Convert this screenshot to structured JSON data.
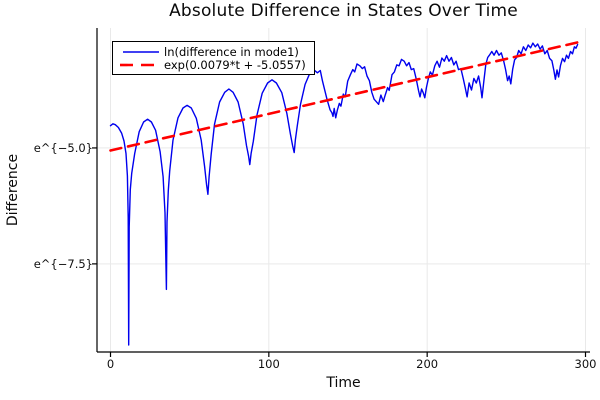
{
  "chart_data": {
    "type": "line",
    "title": "Absolute Difference in States Over Time",
    "xlabel": "Time",
    "ylabel": "Difference",
    "yscale": "log-e",
    "grid": true,
    "legend_position": "top-left",
    "xlim": [
      -8.53,
      302.84
    ],
    "ylim_ln": [
      -9.4,
      -2.414
    ],
    "x_ticks": [
      0,
      100,
      200,
      300
    ],
    "y_ticks": [
      {
        "label": "e^{−5.0}",
        "ln": -5.0
      },
      {
        "label": "e^{−7.5}",
        "ln": -7.5
      }
    ],
    "colors": {
      "series1": "#0000ee",
      "series2": "#ff0000",
      "grid": "#e9e9e9",
      "axis": "#000000"
    },
    "series": [
      {
        "name": "ln(difference in mode1)",
        "style": "solid",
        "color": "#0000ee",
        "width": 1.4,
        "points": [
          [
            0,
            -4.52
          ],
          [
            1.5,
            -4.48
          ],
          [
            3,
            -4.5
          ],
          [
            5,
            -4.56
          ],
          [
            7,
            -4.68
          ],
          [
            8.5,
            -4.85
          ],
          [
            9.8,
            -5.12
          ],
          [
            10.7,
            -5.6
          ],
          [
            11.2,
            -6.5
          ],
          [
            11.5,
            -9.25
          ],
          [
            11.8,
            -6.7
          ],
          [
            12.5,
            -5.9
          ],
          [
            13.4,
            -5.55
          ],
          [
            15.3,
            -5.12
          ],
          [
            18.1,
            -4.65
          ],
          [
            20.9,
            -4.44
          ],
          [
            23.4,
            -4.38
          ],
          [
            25.8,
            -4.44
          ],
          [
            28.5,
            -4.62
          ],
          [
            31.3,
            -5.08
          ],
          [
            33.2,
            -5.62
          ],
          [
            34.4,
            -6.4
          ],
          [
            35.3,
            -8.05
          ],
          [
            35.7,
            -6.6
          ],
          [
            36.5,
            -5.92
          ],
          [
            37.4,
            -5.5
          ],
          [
            39.5,
            -4.83
          ],
          [
            42.6,
            -4.35
          ],
          [
            45.8,
            -4.14
          ],
          [
            48.4,
            -4.08
          ],
          [
            51,
            -4.14
          ],
          [
            54.2,
            -4.36
          ],
          [
            57.3,
            -4.83
          ],
          [
            59.4,
            -5.4
          ],
          [
            60.6,
            -5.78
          ],
          [
            61.5,
            -6.0
          ],
          [
            62.3,
            -5.62
          ],
          [
            63.6,
            -5.13
          ],
          [
            65.7,
            -4.49
          ],
          [
            68.9,
            -4.01
          ],
          [
            72.1,
            -3.8
          ],
          [
            74.8,
            -3.73
          ],
          [
            77.4,
            -3.8
          ],
          [
            80.6,
            -4.01
          ],
          [
            83.8,
            -4.48
          ],
          [
            85.9,
            -4.95
          ],
          [
            87.2,
            -5.18
          ],
          [
            88,
            -5.36
          ],
          [
            88.8,
            -5.12
          ],
          [
            90.2,
            -4.86
          ],
          [
            92.5,
            -4.29
          ],
          [
            95.8,
            -3.82
          ],
          [
            99.2,
            -3.6
          ],
          [
            102,
            -3.53
          ],
          [
            104.8,
            -3.6
          ],
          [
            108.2,
            -3.81
          ],
          [
            111.4,
            -4.26
          ],
          [
            113.6,
            -4.7
          ],
          [
            115,
            -4.95
          ],
          [
            116,
            -5.1
          ],
          [
            116.8,
            -4.82
          ],
          [
            118,
            -4.52
          ],
          [
            120,
            -4.06
          ],
          [
            122.9,
            -3.63
          ],
          [
            125.9,
            -3.39
          ],
          [
            128.2,
            -3.31
          ],
          [
            130.7,
            -3.38
          ],
          [
            132.5,
            -3.33
          ],
          [
            133.9,
            -3.56
          ],
          [
            136.8,
            -3.96
          ],
          [
            138.7,
            -4.18
          ],
          [
            139.8,
            -4.24
          ],
          [
            140.5,
            -4.32
          ],
          [
            141.3,
            -4.15
          ],
          [
            142.2,
            -4.35
          ],
          [
            143.3,
            -4.18
          ],
          [
            144.5,
            -4.04
          ],
          [
            145.5,
            -4.1
          ],
          [
            147,
            -3.84
          ],
          [
            148.2,
            -3.9
          ],
          [
            149.8,
            -3.56
          ],
          [
            151.5,
            -3.42
          ],
          [
            153,
            -3.31
          ],
          [
            154.2,
            -3.36
          ],
          [
            155.7,
            -3.19
          ],
          [
            157.5,
            -3.23
          ],
          [
            159,
            -3.29
          ],
          [
            160.5,
            -3.25
          ],
          [
            162,
            -3.45
          ],
          [
            163.5,
            -3.55
          ],
          [
            165,
            -3.8
          ],
          [
            166.5,
            -3.95
          ],
          [
            167.8,
            -4.0
          ],
          [
            169.3,
            -4.06
          ],
          [
            170.8,
            -3.86
          ],
          [
            172.3,
            -4.0
          ],
          [
            173.5,
            -3.86
          ],
          [
            175,
            -3.7
          ],
          [
            176,
            -3.76
          ],
          [
            177.8,
            -3.42
          ],
          [
            179.3,
            -3.36
          ],
          [
            180.8,
            -3.21
          ],
          [
            182.3,
            -3.23
          ],
          [
            183.8,
            -3.09
          ],
          [
            185.5,
            -3.13
          ],
          [
            187,
            -3.23
          ],
          [
            188.5,
            -3.16
          ],
          [
            190,
            -3.31
          ],
          [
            191.5,
            -3.29
          ],
          [
            193,
            -3.5
          ],
          [
            194.5,
            -3.76
          ],
          [
            195.5,
            -3.9
          ],
          [
            196.5,
            -3.73
          ],
          [
            197.5,
            -3.81
          ],
          [
            198.5,
            -3.92
          ],
          [
            199.5,
            -3.7
          ],
          [
            200.8,
            -3.5
          ],
          [
            202,
            -3.36
          ],
          [
            203.3,
            -3.43
          ],
          [
            204.8,
            -3.23
          ],
          [
            206.3,
            -3.13
          ],
          [
            207.8,
            -3.26
          ],
          [
            209.3,
            -3.06
          ],
          [
            210.8,
            -3.13
          ],
          [
            212.3,
            -3.01
          ],
          [
            213.8,
            -3.13
          ],
          [
            215.3,
            -3.05
          ],
          [
            216.8,
            -3.21
          ],
          [
            218.3,
            -3.13
          ],
          [
            219.8,
            -3.31
          ],
          [
            221.3,
            -3.29
          ],
          [
            222.8,
            -3.51
          ],
          [
            224,
            -3.7
          ],
          [
            225.2,
            -3.9
          ],
          [
            226.5,
            -3.6
          ],
          [
            228,
            -3.75
          ],
          [
            229.5,
            -3.5
          ],
          [
            231,
            -3.6
          ],
          [
            232.5,
            -3.45
          ],
          [
            233.8,
            -3.7
          ],
          [
            234.6,
            -3.92
          ],
          [
            235.8,
            -3.55
          ],
          [
            237,
            -3.2
          ],
          [
            238.2,
            -3.05
          ],
          [
            239.3,
            -3.0
          ],
          [
            240.8,
            -2.92
          ],
          [
            242.3,
            -3.0
          ],
          [
            243.8,
            -2.9
          ],
          [
            245.3,
            -3.0
          ],
          [
            246.8,
            -2.95
          ],
          [
            248.3,
            -3.12
          ],
          [
            249.5,
            -3.3
          ],
          [
            250.8,
            -3.55
          ],
          [
            251.8,
            -3.45
          ],
          [
            252.8,
            -3.62
          ],
          [
            254,
            -3.3
          ],
          [
            255.2,
            -3.1
          ],
          [
            256.5,
            -3.05
          ],
          [
            257.8,
            -2.9
          ],
          [
            259.3,
            -2.97
          ],
          [
            260.8,
            -2.82
          ],
          [
            262.3,
            -2.9
          ],
          [
            263.8,
            -2.78
          ],
          [
            265.3,
            -2.84
          ],
          [
            266.8,
            -2.74
          ],
          [
            268.3,
            -2.82
          ],
          [
            269.8,
            -2.76
          ],
          [
            271.3,
            -2.87
          ],
          [
            272.8,
            -2.8
          ],
          [
            274.3,
            -2.97
          ],
          [
            275.8,
            -2.9
          ],
          [
            277.3,
            -3.07
          ],
          [
            278.8,
            -3.12
          ],
          [
            280,
            -3.32
          ],
          [
            281,
            -3.52
          ],
          [
            282,
            -3.32
          ],
          [
            283,
            -3.47
          ],
          [
            284.2,
            -3.22
          ],
          [
            285.5,
            -3.07
          ],
          [
            286.8,
            -3.14
          ],
          [
            288,
            -3.0
          ],
          [
            289.2,
            -3.07
          ],
          [
            290.5,
            -2.92
          ],
          [
            291.8,
            -2.97
          ],
          [
            293,
            -2.82
          ],
          [
            294,
            -2.85
          ],
          [
            295,
            -2.77
          ]
        ]
      },
      {
        "name": "exp(0.0079*t + -5.0557)",
        "style": "dashed",
        "color": "#ff0000",
        "width": 2.6,
        "slope": 0.0079,
        "intercept": -5.0557,
        "points": [
          [
            0,
            -5.0557
          ],
          [
            295.5,
            -2.721
          ]
        ]
      }
    ]
  }
}
